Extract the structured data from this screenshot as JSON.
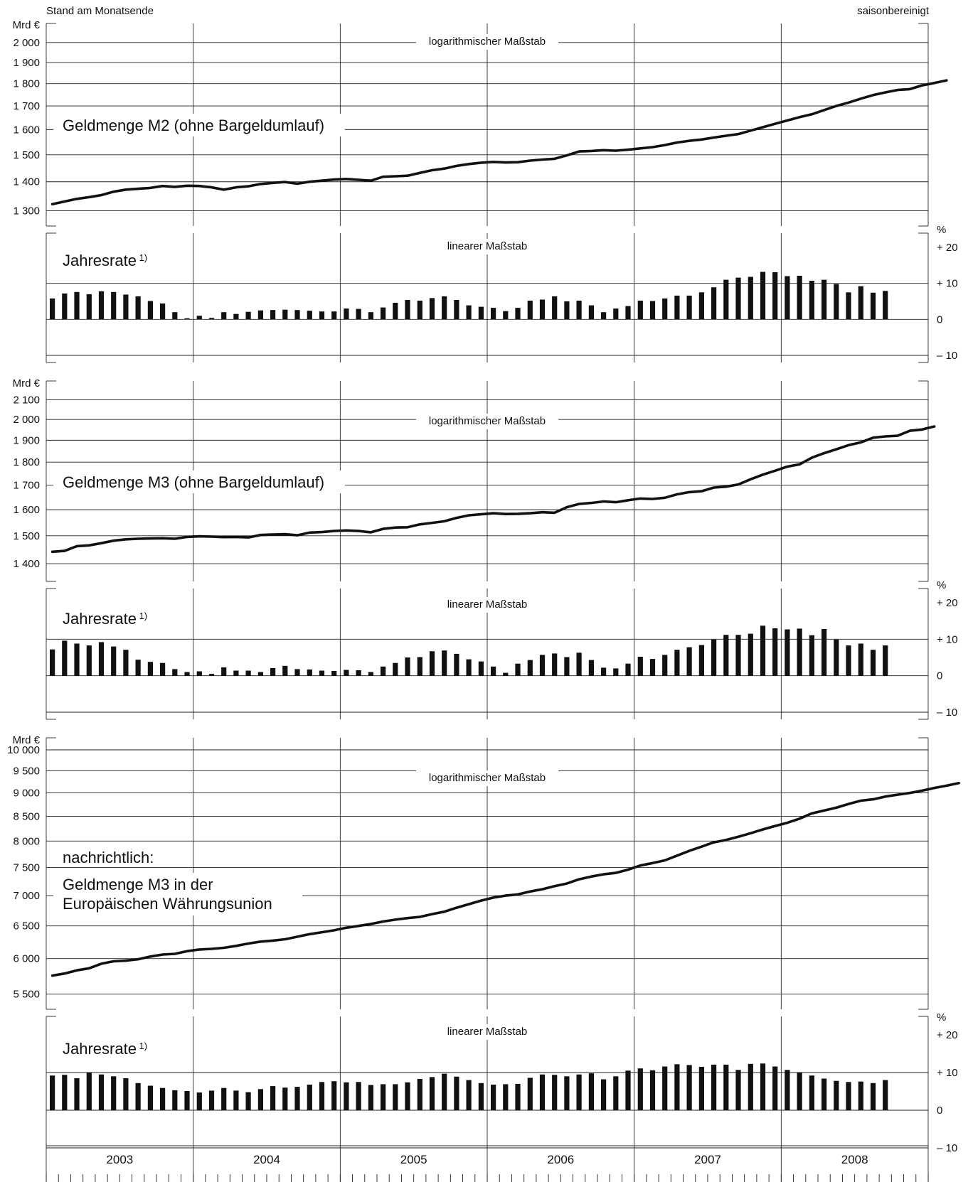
{
  "header": {
    "left": "Stand am Monatsende",
    "right": "saisonbereinigt"
  },
  "chart_data": [
    {
      "type": "line",
      "title": "Geldmenge M2 (ohne Bargeldumlauf)",
      "scale_label": "logarithmischer Maßstab",
      "unit": "Mrd €",
      "log_scale": true,
      "ylim": [
        1250,
        2100
      ],
      "yticks": [
        {
          "v": 1300,
          "t": "1 300"
        },
        {
          "v": 1400,
          "t": "1 400"
        },
        {
          "v": 1500,
          "t": "1 500"
        },
        {
          "v": 1600,
          "t": "1 600"
        },
        {
          "v": 1700,
          "t": "1 700"
        },
        {
          "v": 1800,
          "t": "1 800"
        },
        {
          "v": 1900,
          "t": "1 900"
        },
        {
          "v": 2000,
          "t": "2 000"
        }
      ],
      "x_start": "2003-01",
      "x_step": "month",
      "values": [
        1322,
        1331,
        1340,
        1346,
        1353,
        1365,
        1372,
        1375,
        1378,
        1385,
        1382,
        1386,
        1385,
        1380,
        1372,
        1380,
        1384,
        1392,
        1396,
        1399,
        1393,
        1400,
        1404,
        1408,
        1410,
        1407,
        1404,
        1418,
        1420,
        1422,
        1432,
        1442,
        1448,
        1458,
        1465,
        1470,
        1473,
        1471,
        1472,
        1478,
        1482,
        1485,
        1498,
        1513,
        1515,
        1518,
        1516,
        1520,
        1525,
        1530,
        1538,
        1548,
        1555,
        1560,
        1568,
        1575,
        1582,
        1596,
        1610,
        1624,
        1638,
        1652,
        1664,
        1682,
        1700,
        1715,
        1732,
        1748,
        1760,
        1771,
        1775,
        1792,
        1803,
        1815
      ]
    },
    {
      "type": "bar",
      "title": "Jahresrate 1)",
      "scale_label": "linearer Maßstab",
      "unit": "%",
      "ylim": [
        -10,
        20
      ],
      "yticks": [
        {
          "v": 20,
          "t": "+ 20"
        },
        {
          "v": 10,
          "t": "+ 10"
        },
        {
          "v": 0,
          "t": "0"
        },
        {
          "v": -10,
          "t": "– 10"
        }
      ],
      "x_start": "2003-01",
      "x_step": "month",
      "values": [
        5.8,
        7.2,
        7.6,
        7.0,
        7.8,
        7.6,
        6.9,
        6.4,
        5.1,
        4.4,
        2.0,
        0.3,
        1.0,
        0.4,
        2.0,
        1.5,
        2.1,
        2.5,
        2.6,
        2.7,
        2.6,
        2.4,
        2.2,
        2.2,
        3.0,
        2.9,
        2.0,
        3.3,
        4.6,
        5.4,
        5.2,
        5.9,
        6.4,
        5.4,
        3.9,
        3.5,
        3.2,
        2.3,
        3.2,
        5.2,
        5.5,
        6.4,
        5.0,
        5.2,
        3.9,
        2.0,
        3.0,
        3.7,
        5.2,
        5.1,
        5.8,
        6.6,
        6.6,
        7.5,
        8.9,
        11.0,
        11.6,
        11.8,
        13.2,
        13.1,
        12.0,
        12.1,
        10.7,
        11.0,
        9.8,
        7.5,
        9.2,
        7.4,
        7.9
      ]
    },
    {
      "type": "line",
      "title": "Geldmenge M3 (ohne Bargeldumlauf)",
      "scale_label": "logarithmischer Maßstab",
      "unit": "Mrd €",
      "log_scale": true,
      "ylim": [
        1340,
        2200
      ],
      "yticks": [
        {
          "v": 1400,
          "t": "1 400"
        },
        {
          "v": 1500,
          "t": "1 500"
        },
        {
          "v": 1600,
          "t": "1 600"
        },
        {
          "v": 1700,
          "t": "1 700"
        },
        {
          "v": 1800,
          "t": "1 800"
        },
        {
          "v": 1900,
          "t": "1 900"
        },
        {
          "v": 2000,
          "t": "2 000"
        },
        {
          "v": 2100,
          "t": "2 100"
        }
      ],
      "x_start": "2003-01",
      "x_step": "month",
      "values": [
        1442,
        1445,
        1462,
        1465,
        1473,
        1482,
        1487,
        1489,
        1490,
        1491,
        1489,
        1496,
        1498,
        1497,
        1495,
        1496,
        1494,
        1503,
        1505,
        1506,
        1502,
        1512,
        1514,
        1518,
        1520,
        1518,
        1513,
        1526,
        1531,
        1532,
        1543,
        1549,
        1555,
        1568,
        1578,
        1582,
        1586,
        1583,
        1584,
        1586,
        1590,
        1588,
        1610,
        1623,
        1627,
        1633,
        1630,
        1638,
        1645,
        1643,
        1648,
        1662,
        1671,
        1675,
        1690,
        1694,
        1703,
        1725,
        1745,
        1762,
        1780,
        1790,
        1820,
        1840,
        1858,
        1877,
        1890,
        1912,
        1918,
        1921,
        1945,
        1951,
        1966
      ]
    },
    {
      "type": "bar",
      "title": "Jahresrate 1)",
      "scale_label": "linearer Maßstab",
      "unit": "%",
      "ylim": [
        -10,
        20
      ],
      "yticks": [
        {
          "v": 20,
          "t": "+ 20"
        },
        {
          "v": 10,
          "t": "+ 10"
        },
        {
          "v": 0,
          "t": "0"
        },
        {
          "v": -10,
          "t": "– 10"
        }
      ],
      "x_start": "2003-01",
      "x_step": "month",
      "values": [
        7.2,
        9.6,
        8.8,
        8.3,
        9.2,
        8.0,
        7.1,
        4.4,
        3.8,
        3.5,
        1.8,
        1.0,
        1.2,
        0.5,
        2.3,
        1.4,
        1.4,
        1.0,
        2.1,
        2.7,
        1.8,
        1.7,
        1.4,
        1.3,
        1.6,
        1.5,
        1.0,
        2.5,
        3.5,
        5.0,
        5.1,
        6.7,
        6.9,
        6.0,
        4.5,
        3.9,
        2.5,
        0.8,
        3.3,
        4.3,
        5.7,
        6.1,
        5.1,
        6.3,
        4.3,
        2.2,
        2.0,
        3.3,
        5.2,
        4.6,
        5.7,
        7.1,
        7.8,
        8.4,
        9.9,
        11.2,
        11.2,
        11.5,
        13.7,
        13.0,
        12.7,
        12.9,
        11.1,
        12.8,
        9.9,
        8.3,
        8.8,
        7.1,
        8.3
      ]
    },
    {
      "type": "line",
      "title": "Geldmenge M3 in der Europäischen Währungsunion",
      "title_lines": [
        "Geldmenge M3 in der",
        "Europäischen Währungsunion"
      ],
      "note": "nachrichtlich:",
      "scale_label": "logarithmischer Maßstab",
      "unit": "Mrd €",
      "log_scale": true,
      "ylim": [
        5300,
        10300
      ],
      "yticks": [
        {
          "v": 5500,
          "t": "5 500"
        },
        {
          "v": 6000,
          "t": "6 000"
        },
        {
          "v": 6500,
          "t": "6 500"
        },
        {
          "v": 7000,
          "t": "7 000"
        },
        {
          "v": 7500,
          "t": "7 500"
        },
        {
          "v": 8000,
          "t": "8 000"
        },
        {
          "v": 8500,
          "t": "8 500"
        },
        {
          "v": 9000,
          "t": "9 000"
        },
        {
          "v": 9500,
          "t": "9 500"
        },
        {
          "v": 10000,
          "t": "10 000"
        }
      ],
      "x_start": "2003-01",
      "x_step": "month",
      "values": [
        5755,
        5785,
        5830,
        5860,
        5925,
        5960,
        5970,
        5990,
        6030,
        6060,
        6070,
        6110,
        6135,
        6145,
        6160,
        6190,
        6225,
        6255,
        6270,
        6290,
        6330,
        6370,
        6400,
        6430,
        6470,
        6500,
        6530,
        6570,
        6600,
        6625,
        6645,
        6690,
        6730,
        6795,
        6855,
        6915,
        6965,
        7000,
        7020,
        7070,
        7110,
        7165,
        7210,
        7285,
        7335,
        7375,
        7400,
        7460,
        7535,
        7580,
        7630,
        7720,
        7810,
        7890,
        7975,
        8020,
        8085,
        8155,
        8230,
        8300,
        8365,
        8450,
        8560,
        8620,
        8680,
        8760,
        8830,
        8860,
        8920,
        8960,
        9000,
        9050,
        9110,
        9160,
        9220
      ]
    },
    {
      "type": "bar",
      "title": "Jahresrate 1)",
      "scale_label": "linearer Maßstab",
      "unit": "%",
      "ylim": [
        -10,
        20
      ],
      "yticks": [
        {
          "v": 20,
          "t": "+ 20"
        },
        {
          "v": 10,
          "t": "+ 10"
        },
        {
          "v": 0,
          "t": "0"
        },
        {
          "v": -10,
          "t": "– 10"
        }
      ],
      "x_start": "2003-01",
      "x_step": "month",
      "values": [
        9.2,
        9.4,
        8.5,
        10.0,
        9.5,
        9.0,
        8.5,
        7.2,
        6.5,
        5.9,
        5.3,
        5.1,
        4.7,
        5.2,
        5.9,
        5.2,
        4.8,
        5.6,
        6.4,
        6.0,
        6.2,
        6.8,
        7.5,
        7.7,
        7.4,
        7.5,
        6.7,
        6.9,
        6.9,
        7.4,
        8.3,
        8.8,
        9.7,
        8.9,
        8.0,
        7.2,
        6.8,
        6.9,
        7.0,
        8.6,
        9.5,
        9.4,
        9.0,
        9.5,
        9.8,
        8.2,
        9.0,
        10.5,
        11.1,
        10.6,
        11.6,
        12.2,
        12.0,
        11.5,
        12.1,
        12.1,
        10.7,
        12.3,
        12.4,
        11.6,
        10.7,
        10.1,
        9.2,
        8.4,
        7.8,
        7.5,
        7.6,
        7.2,
        8.0
      ]
    }
  ],
  "footnote_marker": "1)",
  "x_axis": {
    "years": [
      "2003",
      "2004",
      "2005",
      "2006",
      "2007",
      "2008"
    ]
  }
}
